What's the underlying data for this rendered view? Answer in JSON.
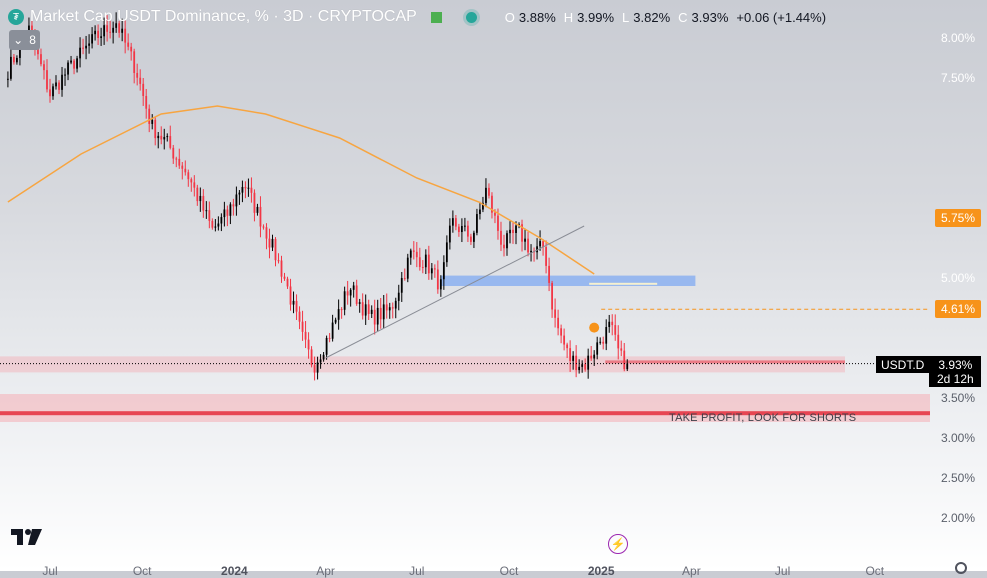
{
  "header": {
    "title": "Market Cap USDT Dominance, % · 3D · CRYPTOCAP",
    "collapse_count": "8",
    "ohlc": [
      {
        "key": "O",
        "value": "3.88%"
      },
      {
        "key": "H",
        "value": "3.99%"
      },
      {
        "key": "L",
        "value": "3.82%"
      },
      {
        "key": "C",
        "value": "3.93%"
      }
    ],
    "change": "+0.06 (+1.44%)"
  },
  "colors": {
    "up": "#000000",
    "down": "#f23645",
    "ma": "#f7a541",
    "orange_tag": "#f7931a",
    "blue_zone": "#90b4f0",
    "red_zone": "#f5aeb4",
    "red_line": "#e74552"
  },
  "price_axis": [
    {
      "price": 8.0,
      "label": "8.00%"
    },
    {
      "price": 7.5,
      "label": "7.50%"
    },
    {
      "price": 5.0,
      "label": "5.00%"
    },
    {
      "price": 3.5,
      "label": "3.50%"
    },
    {
      "price": 3.0,
      "label": "3.00%"
    },
    {
      "price": 2.5,
      "label": "2.50%"
    },
    {
      "price": 2.0,
      "label": "2.00%"
    }
  ],
  "price_tags": [
    {
      "price": 5.75,
      "label": "5.75%"
    },
    {
      "price": 4.61,
      "label": "4.61%"
    }
  ],
  "current": {
    "symbol": "USDT.D",
    "price": "3.93%",
    "countdown": "2d 12h"
  },
  "zone_label": "TAKE PROFIT, LOOK FOR SHORTS",
  "time_axis": [
    {
      "label": "Jul",
      "bold": false
    },
    {
      "label": "Oct",
      "bold": false
    },
    {
      "label": "2024",
      "bold": true
    },
    {
      "label": "Apr",
      "bold": false
    },
    {
      "label": "Jul",
      "bold": false
    },
    {
      "label": "Oct",
      "bold": false
    },
    {
      "label": "2025",
      "bold": true
    },
    {
      "label": "Apr",
      "bold": false
    },
    {
      "label": "Jul",
      "bold": false
    },
    {
      "label": "Oct",
      "bold": false
    }
  ],
  "icons": {
    "logo": "tradingview-logo",
    "flash": "flash-icon",
    "settings": "gear-icon",
    "symbol": "tether-icon"
  },
  "chart_data": {
    "type": "candlestick",
    "title": "Market Cap USDT Dominance, % · 3D · CRYPTOCAP",
    "timeframe": "3D",
    "y_unit": "%",
    "ylim": [
      1.85,
      8.25
    ],
    "path_points": [
      [
        "2023-05-20",
        7.6
      ],
      [
        "2023-06-10",
        8.1
      ],
      [
        "2023-07-01",
        7.3
      ],
      [
        "2023-07-25",
        7.7
      ],
      [
        "2023-08-15",
        8.0
      ],
      [
        "2023-09-05",
        8.2
      ],
      [
        "2023-09-25",
        7.6
      ],
      [
        "2023-10-10",
        6.9
      ],
      [
        "2023-10-25",
        6.7
      ],
      [
        "2023-11-15",
        6.3
      ],
      [
        "2023-12-10",
        5.6
      ],
      [
        "2023-12-25",
        5.8
      ],
      [
        "2024-01-10",
        6.2
      ],
      [
        "2024-02-01",
        5.6
      ],
      [
        "2024-02-20",
        5.0
      ],
      [
        "2024-03-10",
        4.2
      ],
      [
        "2024-03-20",
        3.9
      ],
      [
        "2024-04-05",
        4.3
      ],
      [
        "2024-04-25",
        4.9
      ],
      [
        "2024-05-15",
        4.5
      ],
      [
        "2024-06-05",
        4.6
      ],
      [
        "2024-06-25",
        5.3
      ],
      [
        "2024-07-10",
        5.2
      ],
      [
        "2024-07-25",
        4.9
      ],
      [
        "2024-08-05",
        5.7
      ],
      [
        "2024-08-25",
        5.5
      ],
      [
        "2024-09-08",
        6.1
      ],
      [
        "2024-09-25",
        5.4
      ],
      [
        "2024-10-10",
        5.6
      ],
      [
        "2024-10-25",
        5.3
      ],
      [
        "2024-11-05",
        5.4
      ],
      [
        "2024-11-15",
        4.5
      ],
      [
        "2024-11-30",
        4.0
      ],
      [
        "2024-12-15",
        3.9
      ],
      [
        "2024-12-30",
        4.2
      ],
      [
        "2025-01-10",
        4.4
      ],
      [
        "2025-01-20",
        4.0
      ],
      [
        "2025-01-28",
        3.93
      ]
    ],
    "moving_average": [
      [
        "2023-05-20",
        5.95
      ],
      [
        "2023-08-01",
        6.55
      ],
      [
        "2023-10-20",
        7.05
      ],
      [
        "2023-12-15",
        7.15
      ],
      [
        "2024-02-01",
        7.05
      ],
      [
        "2024-04-15",
        6.75
      ],
      [
        "2024-07-01",
        6.25
      ],
      [
        "2024-09-01",
        5.95
      ],
      [
        "2024-11-01",
        5.5
      ],
      [
        "2024-12-25",
        5.05
      ]
    ],
    "current_close": 3.93,
    "annotations": [
      {
        "type": "horizontal_ray",
        "price": 4.61,
        "label": "4.61%"
      },
      {
        "type": "price_label",
        "price": 5.75,
        "label": "5.75%"
      },
      {
        "type": "zone",
        "from": 3.82,
        "to": 4.02
      },
      {
        "type": "zone",
        "from": 3.2,
        "to": 3.55,
        "label": "TAKE PROFIT, LOOK FOR SHORTS"
      },
      {
        "type": "zone",
        "from": 4.9,
        "to": 5.03
      }
    ],
    "x_ticks": [
      "Jul",
      "Oct",
      "2024",
      "Apr",
      "Jul",
      "Oct",
      "2025",
      "Apr",
      "Jul",
      "Oct"
    ]
  }
}
